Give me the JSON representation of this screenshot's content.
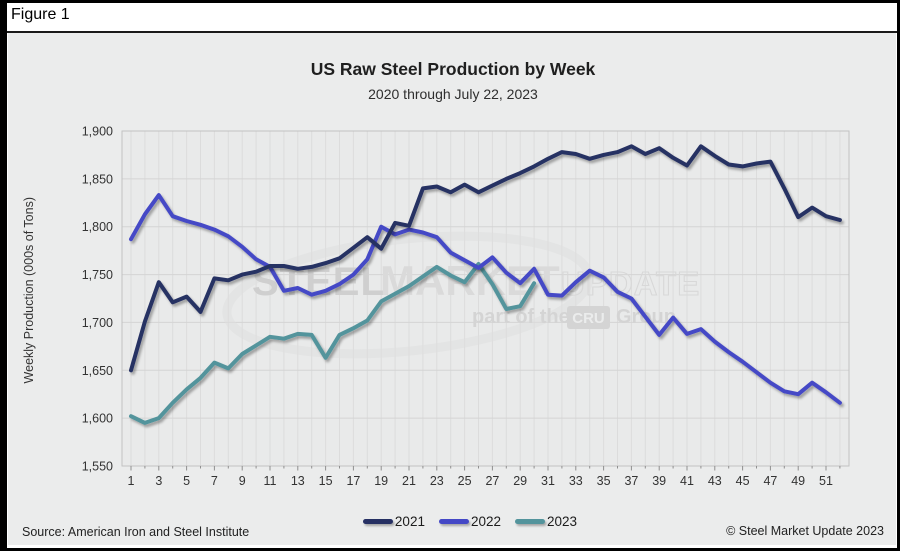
{
  "figure_label": "Figure 1",
  "chart_data": {
    "type": "line",
    "title": "US Raw Steel Production by Week",
    "subtitle": "2020 through July 22, 2023",
    "xlabel": "",
    "ylabel": "Weekly Production (000s of Tons)",
    "ylim": [
      1550,
      1900
    ],
    "ytick_step": 50,
    "x_range": [
      1,
      52
    ],
    "xticks": [
      1,
      3,
      5,
      7,
      9,
      11,
      13,
      15,
      17,
      19,
      21,
      23,
      25,
      27,
      29,
      31,
      33,
      35,
      37,
      39,
      41,
      43,
      45,
      47,
      49,
      51
    ],
    "grid": "on",
    "legend_position": "bottom",
    "series": [
      {
        "name": "2021",
        "color": "#263063",
        "start_week": 1,
        "values": [
          1650,
          1701,
          1742,
          1721,
          1727,
          1711,
          1746,
          1744,
          1750,
          1753,
          1759,
          1759,
          1756,
          1758,
          1762,
          1767,
          1778,
          1789,
          1777,
          1804,
          1801,
          1840,
          1842,
          1836,
          1844,
          1836,
          1843,
          1850,
          1856,
          1863,
          1871,
          1878,
          1876,
          1871,
          1875,
          1878,
          1884,
          1876,
          1882,
          1872,
          1864,
          1884,
          1874,
          1865,
          1863,
          1866,
          1868,
          1840,
          1810,
          1820,
          1811,
          1807
        ]
      },
      {
        "name": "2022",
        "color": "#4448c6",
        "start_week": 1,
        "values": [
          1787,
          1813,
          1833,
          1811,
          1806,
          1802,
          1797,
          1790,
          1779,
          1766,
          1758,
          1733,
          1736,
          1729,
          1733,
          1740,
          1750,
          1766,
          1800,
          1792,
          1797,
          1794,
          1789,
          1773,
          1765,
          1757,
          1768,
          1752,
          1741,
          1756,
          1729,
          1728,
          1742,
          1754,
          1747,
          1732,
          1725,
          1706,
          1687,
          1705,
          1688,
          1693,
          1680,
          1669,
          1659,
          1648,
          1637,
          1628,
          1625,
          1637,
          1627,
          1616
        ]
      },
      {
        "name": "2023",
        "color": "#53949c",
        "start_week": 1,
        "values": [
          1602,
          1595,
          1600,
          1616,
          1630,
          1642,
          1658,
          1652,
          1667,
          1676,
          1685,
          1683,
          1688,
          1687,
          1663,
          1687,
          1694,
          1702,
          1722,
          1730,
          1738,
          1748,
          1758,
          1749,
          1742,
          1761,
          1740,
          1714,
          1717,
          1741
        ]
      }
    ]
  },
  "watermark": {
    "word1": "STEEL",
    "word2": "MARKET",
    "word3": "UPDATE",
    "line2_prefix": "part of the",
    "line2_box": "CRU",
    "line2_suffix": "Group"
  },
  "footer": {
    "source": "Source: American Iron and Steel Institute",
    "copyright": "© Steel Market Update 2023"
  },
  "colors": {
    "panel_bg": "#ebecec",
    "plot_bg": "#e9eaea",
    "grid_h": "#d4d4d4",
    "grid_v": "#dcdcdc",
    "plot_border": "#c2c2c2",
    "tick": "#8f8f8f",
    "axis_text": "#333333",
    "watermark": "#d2d2d2"
  }
}
